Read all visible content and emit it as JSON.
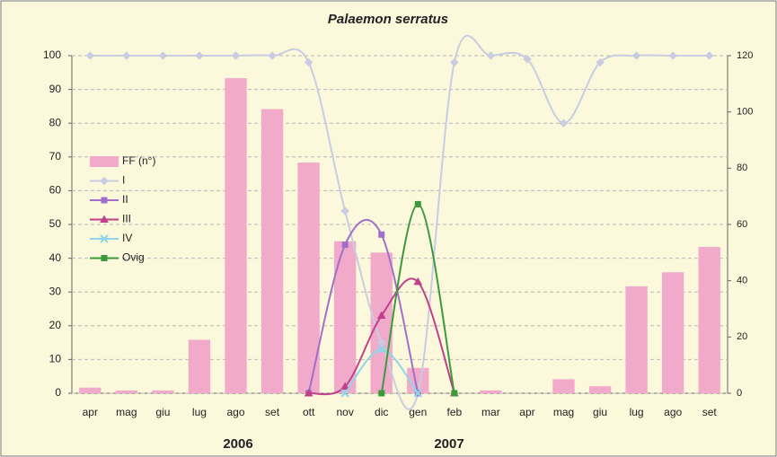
{
  "chart_data": {
    "type": "bar-line",
    "title": "Palaemon serratus",
    "annotations": [
      "2006",
      "2007"
    ],
    "categories": [
      "apr",
      "mag",
      "giu",
      "lug",
      "ago",
      "set",
      "ott",
      "nov",
      "dic",
      "gen",
      "feb",
      "mar",
      "apr",
      "mag",
      "giu",
      "lug",
      "ago",
      "set"
    ],
    "ylim": [
      0,
      100
    ],
    "yticks": [
      0,
      10,
      20,
      30,
      40,
      50,
      60,
      70,
      80,
      90,
      100
    ],
    "y2lim": [
      0,
      120
    ],
    "y2ticks": [
      0,
      20,
      40,
      60,
      80,
      100,
      120
    ],
    "grid": true,
    "legend": "left",
    "series": [
      {
        "name": "FF (n°)",
        "type": "bar",
        "axis": "y2",
        "color": "#f2aacb",
        "values": [
          2,
          1,
          1,
          19,
          112,
          101,
          82,
          54,
          50,
          9,
          null,
          1,
          0,
          5,
          2.5,
          38,
          43,
          52
        ]
      },
      {
        "name": "I",
        "type": "line",
        "color": "#c8cde2",
        "marker": "diamond",
        "values": [
          100,
          100,
          100,
          100,
          100,
          100,
          98,
          54,
          15,
          0,
          98,
          100,
          99,
          80,
          98,
          100,
          100,
          100
        ]
      },
      {
        "name": "II",
        "type": "line",
        "color": "#a070c8",
        "marker": "square",
        "values": [
          null,
          null,
          null,
          null,
          null,
          null,
          0,
          44,
          47,
          0,
          null,
          null,
          null,
          null,
          null,
          null,
          null,
          null
        ]
      },
      {
        "name": "III",
        "type": "line",
        "color": "#c0408a",
        "marker": "triangle",
        "values": [
          null,
          null,
          null,
          null,
          null,
          null,
          0,
          2,
          23,
          33,
          0,
          null,
          null,
          null,
          null,
          null,
          null,
          null
        ]
      },
      {
        "name": "IV",
        "type": "line",
        "color": "#8fd6e8",
        "marker": "x",
        "values": [
          null,
          null,
          null,
          null,
          null,
          null,
          null,
          0,
          13,
          0,
          null,
          null,
          null,
          null,
          null,
          null,
          null,
          null
        ]
      },
      {
        "name": "Ovig",
        "type": "line",
        "color": "#3c9a3c",
        "marker": "square",
        "values": [
          null,
          null,
          null,
          null,
          null,
          null,
          null,
          null,
          0,
          56,
          0,
          null,
          null,
          null,
          null,
          null,
          null,
          null
        ]
      }
    ]
  }
}
